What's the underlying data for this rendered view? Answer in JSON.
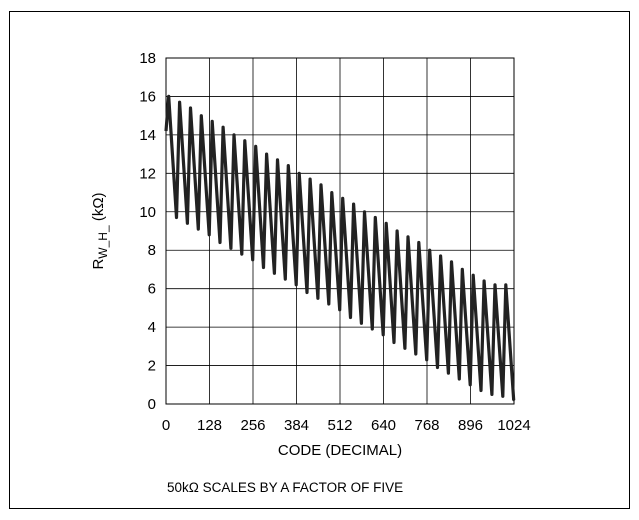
{
  "chart_data": {
    "type": "line",
    "title": "",
    "xlabel": "CODE (DECIMAL)",
    "ylabel_main": "R",
    "ylabel_sub": "W_H_",
    "ylabel_unit": " (kΩ)",
    "xlim": [
      0,
      1024
    ],
    "ylim": [
      0,
      18
    ],
    "x_ticks": [
      "0",
      "128",
      "256",
      "384",
      "512",
      "640",
      "768",
      "896",
      "1024"
    ],
    "y_ticks": [
      "0",
      "2",
      "4",
      "6",
      "8",
      "10",
      "12",
      "14",
      "16",
      "18"
    ],
    "grid": true,
    "legend": "none",
    "line_color": "#222222",
    "series": [
      {
        "description_of_shape": "sawtooth oscillation, 32 cycles of 32 codes each",
        "x_cycle_period": 32,
        "peaks": [
          {
            "x": 8,
            "y": 16.0
          },
          {
            "x": 40,
            "y": 15.7
          },
          {
            "x": 72,
            "y": 15.4
          },
          {
            "x": 104,
            "y": 15.0
          },
          {
            "x": 136,
            "y": 14.7
          },
          {
            "x": 168,
            "y": 14.4
          },
          {
            "x": 200,
            "y": 14.0
          },
          {
            "x": 232,
            "y": 13.7
          },
          {
            "x": 264,
            "y": 13.4
          },
          {
            "x": 296,
            "y": 13.0
          },
          {
            "x": 328,
            "y": 12.7
          },
          {
            "x": 360,
            "y": 12.4
          },
          {
            "x": 392,
            "y": 12.0
          },
          {
            "x": 424,
            "y": 11.7
          },
          {
            "x": 456,
            "y": 11.4
          },
          {
            "x": 488,
            "y": 11.0
          },
          {
            "x": 520,
            "y": 10.7
          },
          {
            "x": 552,
            "y": 10.4
          },
          {
            "x": 584,
            "y": 10.0
          },
          {
            "x": 616,
            "y": 9.7
          },
          {
            "x": 648,
            "y": 9.4
          },
          {
            "x": 680,
            "y": 9.0
          },
          {
            "x": 712,
            "y": 8.7
          },
          {
            "x": 744,
            "y": 8.4
          },
          {
            "x": 776,
            "y": 8.0
          },
          {
            "x": 808,
            "y": 7.7
          },
          {
            "x": 840,
            "y": 7.4
          },
          {
            "x": 872,
            "y": 7.0
          },
          {
            "x": 904,
            "y": 6.7
          },
          {
            "x": 936,
            "y": 6.4
          },
          {
            "x": 968,
            "y": 6.2
          },
          {
            "x": 1000,
            "y": 6.2
          }
        ],
        "troughs": [
          {
            "x": 31,
            "y": 9.7
          },
          {
            "x": 63,
            "y": 9.4
          },
          {
            "x": 95,
            "y": 9.1
          },
          {
            "x": 127,
            "y": 8.8
          },
          {
            "x": 159,
            "y": 8.4
          },
          {
            "x": 191,
            "y": 8.1
          },
          {
            "x": 223,
            "y": 7.8
          },
          {
            "x": 255,
            "y": 7.5
          },
          {
            "x": 287,
            "y": 7.1
          },
          {
            "x": 319,
            "y": 6.8
          },
          {
            "x": 351,
            "y": 6.5
          },
          {
            "x": 383,
            "y": 6.2
          },
          {
            "x": 415,
            "y": 5.8
          },
          {
            "x": 447,
            "y": 5.5
          },
          {
            "x": 479,
            "y": 5.2
          },
          {
            "x": 511,
            "y": 4.9
          },
          {
            "x": 543,
            "y": 4.5
          },
          {
            "x": 575,
            "y": 4.2
          },
          {
            "x": 607,
            "y": 3.9
          },
          {
            "x": 639,
            "y": 3.6
          },
          {
            "x": 671,
            "y": 3.2
          },
          {
            "x": 703,
            "y": 2.9
          },
          {
            "x": 735,
            "y": 2.6
          },
          {
            "x": 767,
            "y": 2.3
          },
          {
            "x": 799,
            "y": 1.9
          },
          {
            "x": 831,
            "y": 1.6
          },
          {
            "x": 863,
            "y": 1.3
          },
          {
            "x": 895,
            "y": 1.0
          },
          {
            "x": 927,
            "y": 0.7
          },
          {
            "x": 959,
            "y": 0.5
          },
          {
            "x": 991,
            "y": 0.4
          },
          {
            "x": 1023,
            "y": 0.2
          }
        ]
      }
    ]
  },
  "footnote": "50kΩ SCALES BY A FACTOR OF FIVE"
}
